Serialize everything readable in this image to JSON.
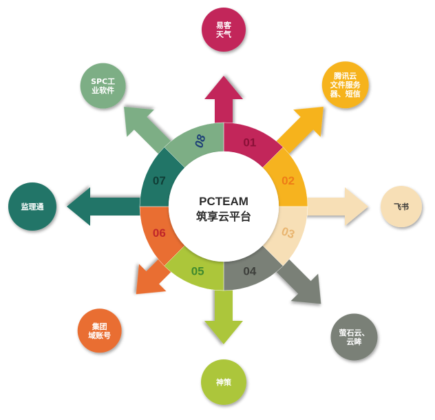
{
  "center": {
    "line1": "PCTEAM",
    "line2": "筑享云平台"
  },
  "segments": [
    {
      "num": "01",
      "color": "#c2265a",
      "num_color": "#8a1037",
      "label_lines": [
        "易客",
        "天气"
      ],
      "label_color": "#ffffff"
    },
    {
      "num": "02",
      "color": "#f6b31f",
      "num_color": "#ee7c16",
      "label_lines": [
        "腾讯云",
        "文件服务",
        "器、短信"
      ],
      "label_color": "#ffffff"
    },
    {
      "num": "03",
      "color": "#f7dfb6",
      "num_color": "#e9b570",
      "label_lines": [
        "飞书"
      ],
      "label_color": "#333333"
    },
    {
      "num": "04",
      "color": "#7a8077",
      "num_color": "#3d3f3b",
      "label_lines": [
        "萤石云、",
        "云眸"
      ],
      "label_color": "#ffffff"
    },
    {
      "num": "05",
      "color": "#acc63a",
      "num_color": "#3f8a2e",
      "label_lines": [
        "神策"
      ],
      "label_color": "#ffffff"
    },
    {
      "num": "06",
      "color": "#e96e32",
      "num_color": "#c0262a",
      "label_lines": [
        "集团",
        "域账号"
      ],
      "label_color": "#ffffff"
    },
    {
      "num": "07",
      "color": "#217567",
      "num_color": "#103d36",
      "label_lines": [
        "监理通"
      ],
      "label_color": "#ffffff"
    },
    {
      "num": "08",
      "color": "#7dae85",
      "num_color": "#1d3f77",
      "label_lines": [
        "SPC工",
        "业软件"
      ],
      "label_color": "#ffffff"
    }
  ],
  "colors": {
    "center_fill": "#ffffff",
    "center_text": "#2b2b2b"
  }
}
